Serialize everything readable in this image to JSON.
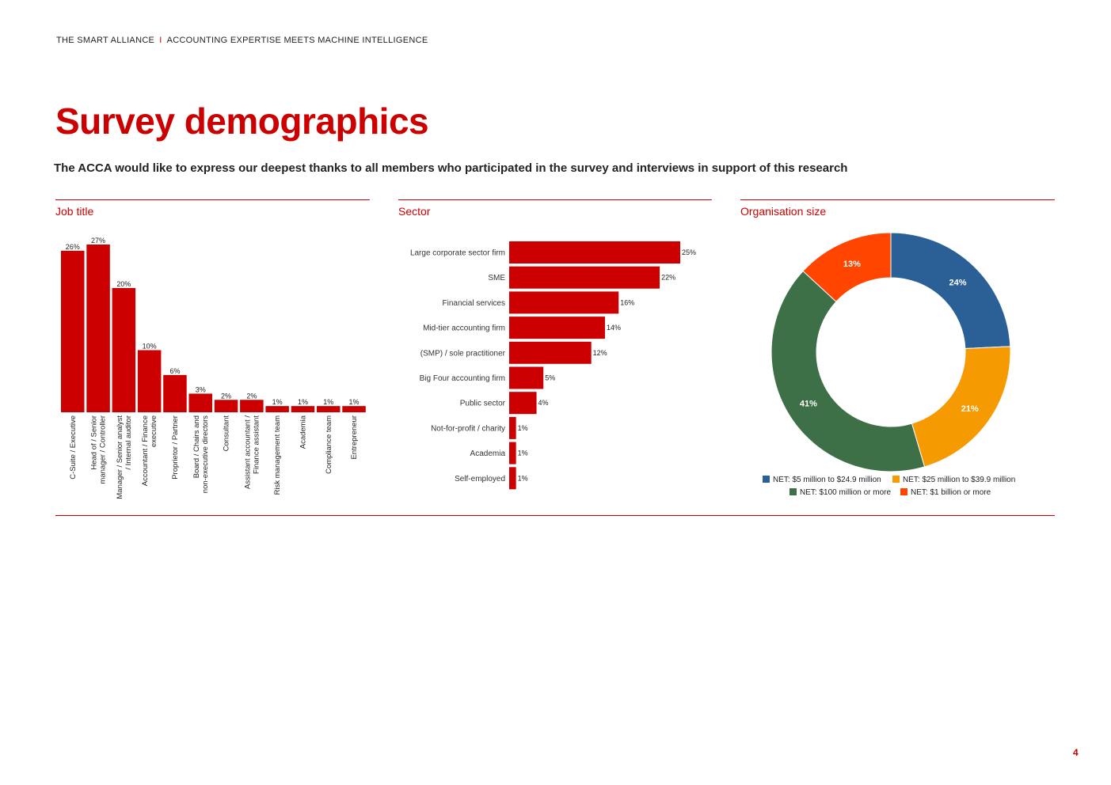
{
  "header": {
    "left": "THE SMART ALLIANCE",
    "separator": "I",
    "right": "ACCOUNTING EXPERTISE MEETS MACHINE INTELLIGENCE"
  },
  "title": "Survey demographics",
  "subtitle": "The ACCA would like to express our deepest thanks to all members who participated in the survey and interviews in support of this research",
  "page_number": "4",
  "colors": {
    "accent": "#cc0000",
    "donut": [
      "#2a6096",
      "#f59a00",
      "#3d7047",
      "#ff4500"
    ]
  },
  "chart_data": [
    {
      "type": "bar",
      "title": "Job title",
      "orientation": "vertical",
      "categories": [
        [
          "C-Suite / Executive"
        ],
        [
          "Head of / Senior",
          "manager / Controller"
        ],
        [
          "Manager / Senior analyst",
          "/ Internal auditor"
        ],
        [
          "Accountant / Finance",
          "executive"
        ],
        [
          "Proprietor / Partner"
        ],
        [
          "Board / Chairs and",
          "non-executive directors"
        ],
        [
          "Consultant"
        ],
        [
          "Assistant accountant /",
          "Finance assistant"
        ],
        [
          "Risk management team"
        ],
        [
          "Academia"
        ],
        [
          "Compliance team"
        ],
        [
          "Entrepreneur"
        ]
      ],
      "values": [
        26,
        27,
        20,
        10,
        6,
        3,
        2,
        2,
        1,
        1,
        1,
        1
      ],
      "data_labels": [
        "26%",
        "27%",
        "20%",
        "10%",
        "6%",
        "3%",
        "2%",
        "2%",
        "1%",
        "1%",
        "1%",
        "1%"
      ],
      "ylim": [
        0,
        27
      ]
    },
    {
      "type": "bar",
      "title": "Sector",
      "orientation": "horizontal",
      "categories": [
        "Large corporate sector firm",
        "SME",
        "Financial services",
        "Mid-tier accounting firm",
        "(SMP) / sole practitioner",
        "Big Four accounting firm",
        "Public sector",
        "Not-for-profit / charity",
        "Academia",
        "Self-employed"
      ],
      "values": [
        25,
        22,
        16,
        14,
        12,
        5,
        4,
        1,
        1,
        1
      ],
      "data_labels": [
        "25%",
        "22%",
        "16%",
        "14%",
        "12%",
        "5%",
        "4%",
        "1%",
        "1%",
        "1%"
      ],
      "xlim": [
        0,
        25
      ]
    },
    {
      "type": "pie",
      "title": "Organisation size",
      "donut": true,
      "series": [
        {
          "name": "NET: $5 million to $24.9 million",
          "value": 24,
          "label": "24%"
        },
        {
          "name": "NET: $25 million to $39.9 million",
          "value": 21,
          "label": "21%"
        },
        {
          "name": "NET: $100 million or more",
          "value": 41,
          "label": "41%"
        },
        {
          "name": "NET: $1 billion or more",
          "value": 13,
          "label": "13%"
        }
      ],
      "legend_position": "bottom"
    }
  ]
}
